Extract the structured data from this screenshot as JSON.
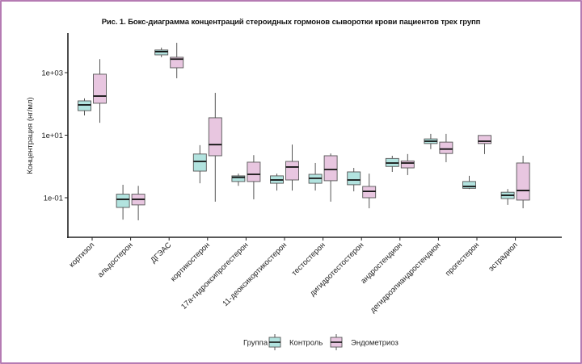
{
  "chart_data": {
    "type": "boxplot",
    "title": "Рис. 1. Бокс-диаграмма концентраций стероидных гормонов сыворотки крови пациентов трех групп",
    "xlabel": "",
    "ylabel": "Концентрация (нг/мл)",
    "yscale": "log10",
    "ylim": [
      0.012,
      18000
    ],
    "yticks": [
      {
        "value": 1000,
        "label": "1e+03"
      },
      {
        "value": 10,
        "label": "1e+01"
      },
      {
        "value": 0.1,
        "label": "1e-01"
      }
    ],
    "grid": false,
    "legend": {
      "title": "Группа",
      "position": "bottom",
      "entries": [
        {
          "name": "Контроль",
          "color": "#b2e3df"
        },
        {
          "name": "Эндометриоз",
          "color": "#e8c6e0"
        }
      ]
    },
    "categories": [
      "кортизол",
      "альдостерон",
      "ДГЭАС",
      "кортикостерон",
      "17а-гидроксипрогестерон",
      "11-деоксикортикостерон",
      "тестостерон",
      "дигидротестостерон",
      "андростендион",
      "дегидроэпиандростендион",
      "прогестерон",
      "эстрадиол"
    ],
    "series": [
      {
        "name": "Контроль",
        "color": "#b2e3df",
        "boxes": [
          {
            "whisker_low": 43,
            "q1": 61,
            "median": 93,
            "q3": 125,
            "whisker_high": 150
          },
          {
            "whisker_low": 0.02,
            "q1": 0.049,
            "median": 0.089,
            "q3": 0.13,
            "whisker_high": 0.26
          },
          {
            "whisker_low": 3100,
            "q1": 3700,
            "median": 4700,
            "q3": 5300,
            "whisker_high": 6300
          },
          {
            "whisker_low": 0.29,
            "q1": 0.71,
            "median": 1.45,
            "q3": 2.5,
            "whisker_high": 4.8
          },
          {
            "whisker_low": 0.24,
            "q1": 0.33,
            "median": 0.45,
            "q3": 0.5,
            "whisker_high": 0.59
          },
          {
            "whisker_low": 0.17,
            "q1": 0.29,
            "median": 0.37,
            "q3": 0.5,
            "whisker_high": 0.59
          },
          {
            "whisker_low": 0.17,
            "q1": 0.29,
            "median": 0.42,
            "q3": 0.56,
            "whisker_high": 1.29
          },
          {
            "whisker_low": 0.16,
            "q1": 0.26,
            "median": 0.37,
            "q3": 0.67,
            "whisker_high": 0.9
          },
          {
            "whisker_low": 0.67,
            "q1": 1.0,
            "median": 1.29,
            "q3": 1.8,
            "whisker_high": 2.2
          },
          {
            "whisker_low": 3.6,
            "q1": 5.4,
            "median": 6.4,
            "q3": 7.6,
            "whisker_high": 11
          },
          {
            "whisker_low": 0.19,
            "q1": 0.2,
            "median": 0.23,
            "q3": 0.33,
            "whisker_high": 0.5
          },
          {
            "whisker_low": 0.059,
            "q1": 0.094,
            "median": 0.12,
            "q3": 0.15,
            "whisker_high": 0.19
          }
        ]
      },
      {
        "name": "Эндометриоз",
        "color": "#e8c6e0",
        "boxes": [
          {
            "whisker_low": 25,
            "q1": 105,
            "median": 178,
            "q3": 890,
            "whisker_high": 2700
          },
          {
            "whisker_low": 0.019,
            "q1": 0.059,
            "median": 0.089,
            "q3": 0.13,
            "whisker_high": 0.24
          },
          {
            "whisker_low": 660,
            "q1": 1430,
            "median": 2700,
            "q3": 3100,
            "whisker_high": 9000
          },
          {
            "whisker_low": 0.075,
            "q1": 2.2,
            "median": 5.0,
            "q3": 36,
            "whisker_high": 226
          },
          {
            "whisker_low": 0.089,
            "q1": 0.33,
            "median": 0.56,
            "q3": 1.37,
            "whisker_high": 2.3
          },
          {
            "whisker_low": 0.17,
            "q1": 0.37,
            "median": 0.96,
            "q3": 1.45,
            "whisker_high": 5.0
          },
          {
            "whisker_low": 0.075,
            "q1": 0.35,
            "median": 0.8,
            "q3": 2.2,
            "whisker_high": 2.6
          },
          {
            "whisker_low": 0.046,
            "q1": 0.1,
            "median": 0.16,
            "q3": 0.23,
            "whisker_high": 0.59
          },
          {
            "whisker_low": 0.53,
            "q1": 0.9,
            "median": 1.29,
            "q3": 1.5,
            "whisker_high": 2.5
          },
          {
            "whisker_low": 1.37,
            "q1": 2.6,
            "median": 3.6,
            "q3": 6.0,
            "whisker_high": 11
          },
          {
            "whisker_low": 2.5,
            "q1": 5.4,
            "median": 6.4,
            "q3": 9.8,
            "whisker_high": 9.8
          },
          {
            "whisker_low": 0.046,
            "q1": 0.084,
            "median": 0.17,
            "q3": 1.29,
            "whisker_high": 2.2
          }
        ]
      }
    ]
  },
  "colors": {
    "frame_border": "#b57bb3",
    "box_outline": "#555555",
    "median_line": "#111111",
    "whisker": "#555555",
    "axis": "#222222"
  }
}
